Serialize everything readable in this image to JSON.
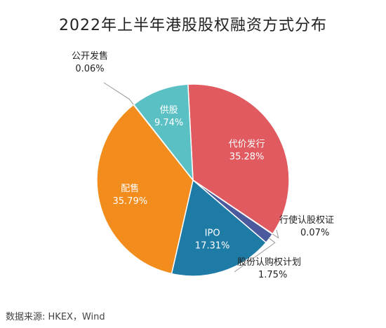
{
  "chart_data": {
    "type": "pie",
    "title": "2022年上半年港股股权融资方式分布",
    "slices": [
      {
        "name": "代价发行",
        "label": "35.28%",
        "value": 35.28,
        "color": "#E05A5F"
      },
      {
        "name": "行使认股权证",
        "label": "0.07%",
        "value": 0.07,
        "color": "#E05A5F"
      },
      {
        "name": "股份认购权计划",
        "label": "1.75%",
        "value": 1.75,
        "color": "#4B5A9C"
      },
      {
        "name": "IPO",
        "label": "17.31%",
        "value": 17.31,
        "color": "#1E7BA6"
      },
      {
        "name": "配售",
        "label": "35.79%",
        "value": 35.79,
        "color": "#F28C1C"
      },
      {
        "name": "公开发售",
        "label": "0.06%",
        "value": 0.06,
        "color": "#F28C1C"
      },
      {
        "name": "供股",
        "label": "9.74%",
        "value": 9.74,
        "color": "#5BC0C4"
      }
    ],
    "watermark": "Wind",
    "source": "数据来源: HKEX，Wind"
  }
}
